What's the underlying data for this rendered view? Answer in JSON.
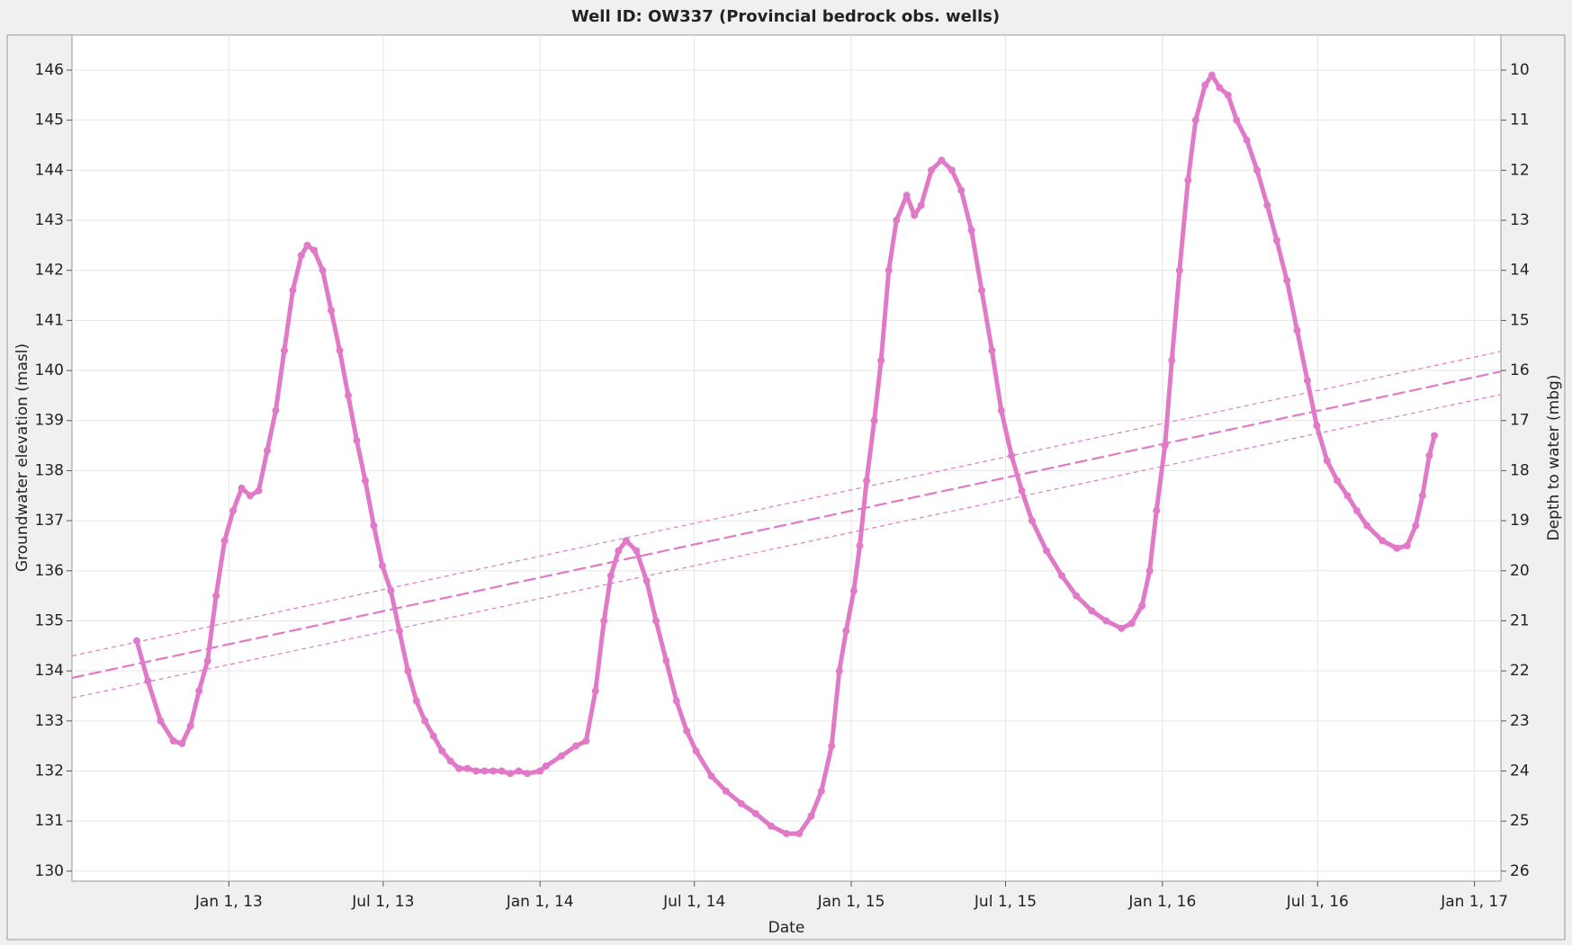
{
  "chart_data": {
    "type": "scatter",
    "title": "Well ID: OW337 (Provincial bedrock obs. wells)",
    "x_label": "Date",
    "y_label": "Groundwater elevation (masl)",
    "y2_label": "Depth to water (mbg)",
    "grid": true,
    "xlim": [
      "2012-07-01",
      "2017-02-01"
    ],
    "xticks": [
      {
        "value": "2013-01-01",
        "label": "Jan 1, 13"
      },
      {
        "value": "2013-07-01",
        "label": "Jul 1, 13"
      },
      {
        "value": "2014-01-01",
        "label": "Jan 1, 14"
      },
      {
        "value": "2014-07-01",
        "label": "Jul 1, 14"
      },
      {
        "value": "2015-01-01",
        "label": "Jan 1, 15"
      },
      {
        "value": "2015-07-01",
        "label": "Jul 1, 15"
      },
      {
        "value": "2016-01-01",
        "label": "Jan 1, 16"
      },
      {
        "value": "2016-07-01",
        "label": "Jul 1, 16"
      },
      {
        "value": "2017-01-01",
        "label": "Jan 1, 17"
      }
    ],
    "ylim": [
      129.8,
      146.7
    ],
    "yticks": [
      130,
      131,
      132,
      133,
      134,
      135,
      136,
      137,
      138,
      139,
      140,
      141,
      142,
      143,
      144,
      145,
      146
    ],
    "y2lim": [
      26.2,
      9.3
    ],
    "y2ticks": [
      10,
      11,
      12,
      13,
      14,
      15,
      16,
      17,
      18,
      19,
      20,
      21,
      22,
      23,
      24,
      25,
      26
    ],
    "series": [
      {
        "name": "OW337",
        "color": "#e07ac8",
        "x": [
          "2012-09-15",
          "2012-09-28",
          "2012-10-13",
          "2012-10-28",
          "2012-11-07",
          "2012-11-17",
          "2012-11-27",
          "2012-12-07",
          "2012-12-17",
          "2012-12-27",
          "2013-01-06",
          "2013-01-16",
          "2013-01-26",
          "2013-02-05",
          "2013-02-15",
          "2013-02-25",
          "2013-03-07",
          "2013-03-17",
          "2013-03-27",
          "2013-04-03",
          "2013-04-11",
          "2013-04-21",
          "2013-05-01",
          "2013-05-11",
          "2013-05-21",
          "2013-05-31",
          "2013-06-10",
          "2013-06-20",
          "2013-06-30",
          "2013-07-10",
          "2013-07-20",
          "2013-07-30",
          "2013-08-09",
          "2013-08-19",
          "2013-08-29",
          "2013-09-08",
          "2013-09-18",
          "2013-09-28",
          "2013-10-08",
          "2013-10-18",
          "2013-10-28",
          "2013-11-07",
          "2013-11-17",
          "2013-11-27",
          "2013-12-07",
          "2013-12-17",
          "2014-01-01",
          "2014-01-08",
          "2014-01-26",
          "2014-02-12",
          "2014-02-24",
          "2014-03-07",
          "2014-03-17",
          "2014-03-25",
          "2014-04-03",
          "2014-04-12",
          "2014-04-24",
          "2014-05-06",
          "2014-05-17",
          "2014-05-29",
          "2014-06-10",
          "2014-06-22",
          "2014-07-03",
          "2014-07-21",
          "2014-08-07",
          "2014-08-25",
          "2014-09-11",
          "2014-09-29",
          "2014-10-17",
          "2014-11-01",
          "2014-11-15",
          "2014-11-27",
          "2014-12-09",
          "2014-12-18",
          "2014-12-26",
          "2015-01-04",
          "2015-01-11",
          "2015-01-19",
          "2015-01-28",
          "2015-02-05",
          "2015-02-14",
          "2015-02-23",
          "2015-03-07",
          "2015-03-16",
          "2015-03-24",
          "2015-04-05",
          "2015-04-17",
          "2015-04-29",
          "2015-05-10",
          "2015-05-22",
          "2015-06-03",
          "2015-06-15",
          "2015-06-26",
          "2015-07-08",
          "2015-07-20",
          "2015-08-01",
          "2015-08-18",
          "2015-09-05",
          "2015-09-22",
          "2015-10-10",
          "2015-10-27",
          "2015-11-14",
          "2015-11-26",
          "2015-12-08",
          "2015-12-17",
          "2015-12-25",
          "2016-01-04",
          "2016-01-12",
          "2016-01-21",
          "2016-01-31",
          "2016-02-09",
          "2016-02-20",
          "2016-02-28",
          "2016-03-08",
          "2016-03-18",
          "2016-03-28",
          "2016-04-09",
          "2016-04-21",
          "2016-05-03",
          "2016-05-14",
          "2016-05-26",
          "2016-06-07",
          "2016-06-19",
          "2016-06-30",
          "2016-07-12",
          "2016-07-24",
          "2016-08-05",
          "2016-08-16",
          "2016-08-28",
          "2016-09-15",
          "2016-10-02",
          "2016-10-14",
          "2016-10-24",
          "2016-11-01",
          "2016-11-09",
          "2016-11-15"
        ],
        "values": [
          134.6,
          133.8,
          133.0,
          132.6,
          132.55,
          132.9,
          133.6,
          134.2,
          135.5,
          136.6,
          137.2,
          137.65,
          137.5,
          137.6,
          138.4,
          139.2,
          140.4,
          141.6,
          142.3,
          142.5,
          142.4,
          142.0,
          141.2,
          140.4,
          139.5,
          138.6,
          137.8,
          136.9,
          136.1,
          135.6,
          134.8,
          134.0,
          133.4,
          133.0,
          132.7,
          132.4,
          132.2,
          132.05,
          132.05,
          132.0,
          132.0,
          132.0,
          132.0,
          131.95,
          132.0,
          131.95,
          132.0,
          132.1,
          132.3,
          132.5,
          132.6,
          133.6,
          135.0,
          135.9,
          136.4,
          136.6,
          136.4,
          135.8,
          135.0,
          134.2,
          133.4,
          132.8,
          132.4,
          131.9,
          131.6,
          131.35,
          131.15,
          130.9,
          130.75,
          130.75,
          131.1,
          131.6,
          132.5,
          134.0,
          134.8,
          135.6,
          136.5,
          137.8,
          139.0,
          140.2,
          142.0,
          143.0,
          143.5,
          143.1,
          143.3,
          144.0,
          144.2,
          144.0,
          143.6,
          142.8,
          141.6,
          140.4,
          139.2,
          138.3,
          137.6,
          137.0,
          136.4,
          135.9,
          135.5,
          135.2,
          135.0,
          134.85,
          134.95,
          135.3,
          136.0,
          137.2,
          138.5,
          140.2,
          142.0,
          143.8,
          145.0,
          145.7,
          145.9,
          145.65,
          145.5,
          145.0,
          144.6,
          144.0,
          143.3,
          142.6,
          141.8,
          140.8,
          139.8,
          138.9,
          138.2,
          137.8,
          137.5,
          137.2,
          136.9,
          136.6,
          136.45,
          136.5,
          136.9,
          137.5,
          138.3,
          138.7
        ]
      }
    ],
    "trend_lines": [
      {
        "color": "#e07ac8",
        "style": "dashed",
        "x": [
          "2012-07-01",
          "2017-02-01"
        ],
        "values": [
          133.86,
          139.98
        ]
      },
      {
        "color": "#e07ac8",
        "style": "dotted",
        "x": [
          "2012-07-01",
          "2017-02-01"
        ],
        "values": [
          134.3,
          140.38
        ]
      },
      {
        "color": "#e07ac8",
        "style": "dotted",
        "x": [
          "2012-07-01",
          "2017-02-01"
        ],
        "values": [
          133.46,
          139.52
        ]
      }
    ]
  }
}
